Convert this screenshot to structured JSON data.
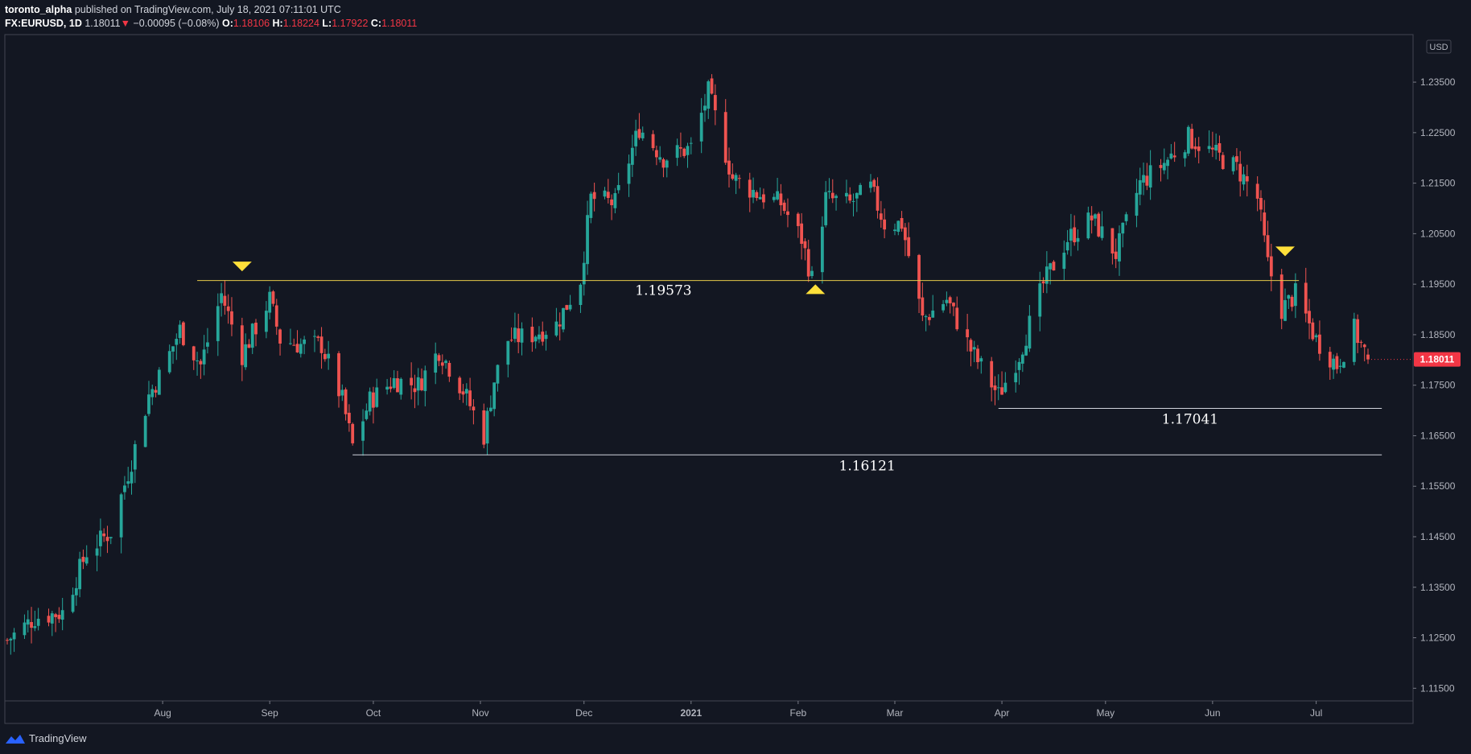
{
  "header": {
    "author": "toronto_alpha",
    "published": "published on TradingView.com, July 18, 2021 07:11:01 UTC",
    "symbol": "FX:EURUSD, 1D",
    "last": "1.18011",
    "change_arrow": "▼",
    "change": "−0.00095 (−0.08%)",
    "o_label": "O:",
    "o": "1.18106",
    "h_label": "H:",
    "h": "1.18224",
    "l_label": "L:",
    "l": "1.17922",
    "c_label": "C:",
    "c": "1.18011"
  },
  "currency_label": "USD",
  "price_badge": "1.18011",
  "footer": {
    "brand": "TradingView",
    "logo_icon": "tradingview-logo-icon"
  },
  "colors": {
    "background": "#131722",
    "bull": "#26a69a",
    "bear": "#ef5350",
    "level_line": "#e5c84a",
    "support_line": "#d1d4dc",
    "marker": "#ffe03a",
    "badge": "#f23645"
  },
  "chart_data": {
    "type": "candlestick",
    "symbol": "FX:EURUSD",
    "interval": "1D",
    "ylim": [
      1.1125,
      1.2425
    ],
    "y_ticks": [
      "1.11500",
      "1.12500",
      "1.13500",
      "1.14500",
      "1.15500",
      "1.16500",
      "1.17500",
      "1.18500",
      "1.19500",
      "1.20500",
      "1.21500",
      "1.22500",
      "1.23500"
    ],
    "x_start": "2020-06-17",
    "x_end": "2021-07-16",
    "month_labels": [
      {
        "label": "Aug",
        "date": "2020-08-01"
      },
      {
        "label": "Sep",
        "date": "2020-09-01"
      },
      {
        "label": "Oct",
        "date": "2020-10-01"
      },
      {
        "label": "Nov",
        "date": "2020-11-01"
      },
      {
        "label": "Dec",
        "date": "2020-12-01"
      },
      {
        "label": "2021",
        "date": "2021-01-01"
      },
      {
        "label": "Feb",
        "date": "2021-02-01"
      },
      {
        "label": "Mar",
        "date": "2021-03-01"
      },
      {
        "label": "Apr",
        "date": "2021-04-01"
      },
      {
        "label": "May",
        "date": "2021-05-01"
      },
      {
        "label": "Jun",
        "date": "2021-06-01"
      },
      {
        "label": "Jul",
        "date": "2021-07-01"
      }
    ],
    "close_path": [
      [
        "2020-06-17",
        1.1245
      ],
      [
        "2020-06-25",
        1.129
      ],
      [
        "2020-07-03",
        1.13
      ],
      [
        "2020-07-10",
        1.142
      ],
      [
        "2020-07-17",
        1.146
      ],
      [
        "2020-07-23",
        1.16
      ],
      [
        "2020-07-28",
        1.173
      ],
      [
        "2020-08-01",
        1.178
      ],
      [
        "2020-08-06",
        1.186
      ],
      [
        "2020-08-12",
        1.179
      ],
      [
        "2020-08-18",
        1.193
      ],
      [
        "2020-08-24",
        1.181
      ],
      [
        "2020-09-01",
        1.192
      ],
      [
        "2020-09-04",
        1.184
      ],
      [
        "2020-09-10",
        1.183
      ],
      [
        "2020-09-16",
        1.183
      ],
      [
        "2020-09-22",
        1.172
      ],
      [
        "2020-09-25",
        1.163
      ],
      [
        "2020-09-30",
        1.172
      ],
      [
        "2020-10-07",
        1.176
      ],
      [
        "2020-10-14",
        1.175
      ],
      [
        "2020-10-20",
        1.182
      ],
      [
        "2020-10-27",
        1.174
      ],
      [
        "2020-11-02",
        1.165
      ],
      [
        "2020-11-05",
        1.176
      ],
      [
        "2020-11-09",
        1.184
      ],
      [
        "2020-11-16",
        1.185
      ],
      [
        "2020-11-23",
        1.187
      ],
      [
        "2020-11-30",
        1.196
      ],
      [
        "2020-12-03",
        1.212
      ],
      [
        "2020-12-10",
        1.211
      ],
      [
        "2020-12-17",
        1.226
      ],
      [
        "2020-12-24",
        1.22
      ],
      [
        "2021-01-01",
        1.222
      ],
      [
        "2021-01-06",
        1.233
      ],
      [
        "2021-01-13",
        1.216
      ],
      [
        "2021-01-20",
        1.213
      ],
      [
        "2021-01-27",
        1.211
      ],
      [
        "2021-02-02",
        1.204
      ],
      [
        "2021-02-05",
        1.196
      ],
      [
        "2021-02-09",
        1.212
      ],
      [
        "2021-02-16",
        1.211
      ],
      [
        "2021-02-22",
        1.214
      ],
      [
        "2021-02-26",
        1.207
      ],
      [
        "2021-03-03",
        1.207
      ],
      [
        "2021-03-09",
        1.188
      ],
      [
        "2021-03-16",
        1.192
      ],
      [
        "2021-03-23",
        1.182
      ],
      [
        "2021-03-31",
        1.173
      ],
      [
        "2021-04-06",
        1.181
      ],
      [
        "2021-04-13",
        1.195
      ],
      [
        "2021-04-20",
        1.204
      ],
      [
        "2021-04-27",
        1.208
      ],
      [
        "2021-05-04",
        1.201
      ],
      [
        "2021-05-11",
        1.215
      ],
      [
        "2021-05-18",
        1.219
      ],
      [
        "2021-05-25",
        1.224
      ],
      [
        "2021-06-01",
        1.221
      ],
      [
        "2021-06-08",
        1.218
      ],
      [
        "2021-06-14",
        1.212
      ],
      [
        "2021-06-17",
        1.199
      ],
      [
        "2021-06-21",
        1.19
      ],
      [
        "2021-06-25",
        1.193
      ],
      [
        "2021-07-01",
        1.184
      ],
      [
        "2021-07-07",
        1.179
      ],
      [
        "2021-07-12",
        1.186
      ],
      [
        "2021-07-16",
        1.1801
      ]
    ],
    "annotations": {
      "horizontal_lines": [
        {
          "price": 1.19573,
          "label": "1.19573",
          "from": "2020-08-11",
          "to": "2021-06-26",
          "color": "level"
        },
        {
          "price": 1.16121,
          "label": "1.16121",
          "from": "2020-09-25",
          "to": "2021-07-20",
          "color": "support"
        },
        {
          "price": 1.17041,
          "label": "1.17041",
          "from": "2021-03-31",
          "to": "2021-07-20",
          "color": "support"
        }
      ],
      "markers": [
        {
          "date": "2020-08-24",
          "price": 1.1985,
          "direction": "down"
        },
        {
          "date": "2021-02-06",
          "price": 1.194,
          "direction": "up"
        },
        {
          "date": "2021-06-22",
          "price": 1.2015,
          "direction": "down"
        }
      ]
    }
  }
}
